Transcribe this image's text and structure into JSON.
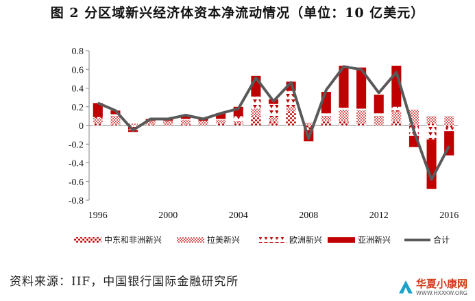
{
  "title": "图 2  分区域新兴经济体资本净流动情况（单位：10 亿美元）",
  "source": "资料来源：IIF，中国银行国际金融研究所",
  "watermark": {
    "name": "华夏小康网",
    "url": "WWW.HXXKW.ORG"
  },
  "colors": {
    "dark_red": "#c00000",
    "pink": "#f2b4b4",
    "line": "#595959",
    "axis": "#808080"
  },
  "chart_data": {
    "type": "bar",
    "stacked": true,
    "categories": [
      "1996",
      "1997",
      "1998",
      "1999",
      "2000",
      "2001",
      "2002",
      "2003",
      "2004",
      "2005",
      "2006",
      "2007",
      "2008",
      "2009",
      "2010",
      "2011",
      "2012",
      "2013",
      "2014",
      "2015",
      "2016"
    ],
    "x_tick_labels": [
      "1996",
      "2000",
      "2004",
      "2008",
      "2012",
      "2016"
    ],
    "y_tick_labels": [
      "0.8",
      "0.6",
      "0.4",
      "0.2",
      "0",
      "-0.2",
      "-0.4",
      "-0.6",
      "-0.8"
    ],
    "ylim": [
      -0.8,
      0.8
    ],
    "legend_position": "bottom",
    "series": [
      {
        "name": "中东和非洲新兴",
        "kind": "bar",
        "pattern": "dots",
        "values": [
          0.02,
          0.01,
          0.0,
          0.01,
          0.0,
          0.01,
          0.0,
          0.02,
          0.02,
          0.1,
          0.05,
          0.15,
          -0.02,
          0.05,
          0.05,
          0.03,
          0.0,
          0.05,
          -0.02,
          0.02,
          -0.02
        ]
      },
      {
        "name": "拉美新兴",
        "kind": "bar",
        "pattern": "checker",
        "values": [
          0.06,
          0.09,
          0.02,
          0.03,
          0.04,
          0.05,
          0.05,
          0.04,
          0.02,
          0.08,
          0.04,
          0.05,
          0.03,
          0.05,
          0.12,
          0.13,
          0.1,
          0.1,
          0.17,
          0.08,
          0.1
        ]
      },
      {
        "name": "欧洲新兴",
        "kind": "bar",
        "pattern": "triangles",
        "values": [
          0.01,
          0.02,
          -0.05,
          0.01,
          0.01,
          0.01,
          0.0,
          0.01,
          0.06,
          0.13,
          0.14,
          0.17,
          -0.03,
          0.03,
          0.02,
          0.02,
          0.03,
          0.05,
          -0.09,
          -0.15,
          -0.04
        ]
      },
      {
        "name": "亚洲新兴",
        "kind": "bar",
        "pattern": "solid",
        "values": [
          0.15,
          0.04,
          -0.02,
          0.02,
          0.02,
          0.04,
          0.03,
          0.06,
          0.1,
          0.22,
          0.05,
          0.1,
          -0.12,
          0.23,
          0.45,
          0.44,
          0.2,
          0.44,
          -0.12,
          -0.53,
          -0.26
        ]
      },
      {
        "name": "合计",
        "kind": "line",
        "values": [
          0.24,
          0.16,
          -0.05,
          0.07,
          0.07,
          0.11,
          0.07,
          0.13,
          0.18,
          0.51,
          0.26,
          0.46,
          -0.14,
          0.38,
          0.63,
          0.6,
          0.35,
          0.57,
          -0.06,
          -0.58,
          -0.22
        ]
      }
    ]
  }
}
